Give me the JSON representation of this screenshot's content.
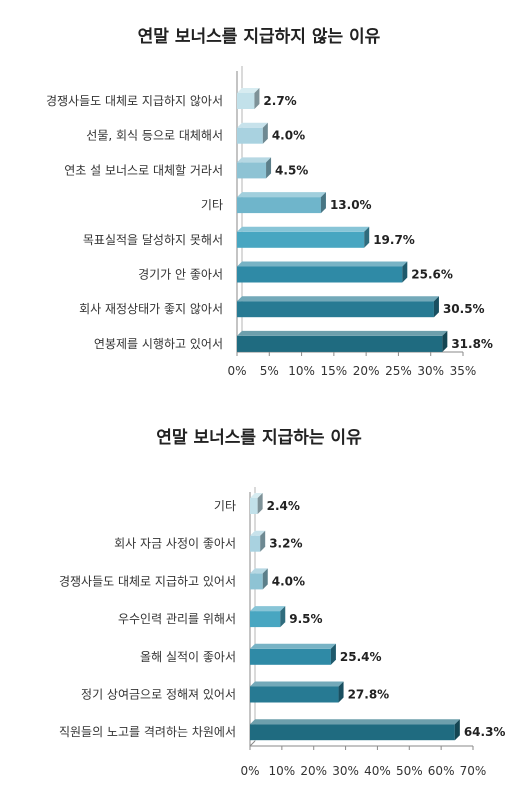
{
  "chart_data": [
    {
      "type": "bar",
      "orientation": "horizontal",
      "title": "연말 보너스를 지급하지 않는 이유",
      "categories": [
        "경쟁사들도 대체로 지급하지 않아서",
        "선물, 회식 등으로 대체해서",
        "연초 설 보너스로 대체할 거라서",
        "기타",
        "목표실적을 달성하지 못해서",
        "경기가 안 좋아서",
        "회사 재정상태가 좋지 않아서",
        "연봉제를 시행하고 있어서"
      ],
      "values": [
        2.7,
        4.0,
        4.5,
        13.0,
        19.7,
        25.6,
        30.5,
        31.8
      ],
      "value_labels": [
        "2.7%",
        "4.0%",
        "4.5%",
        "13.0%",
        "19.7%",
        "25.6%",
        "30.5%",
        "31.8%"
      ],
      "xlim": [
        0,
        35
      ],
      "xticks": [
        0,
        5,
        10,
        15,
        20,
        25,
        30,
        35
      ],
      "xtick_labels": [
        "0%",
        "5%",
        "10%",
        "15%",
        "20%",
        "25%",
        "30%",
        "35%"
      ],
      "grid": false,
      "bar_colors": [
        "#c2e1ea",
        "#a9d2e0",
        "#8ec3d4",
        "#6fb5cb",
        "#48a6c1",
        "#2f8aa6",
        "#277a93",
        "#1f6b80"
      ]
    },
    {
      "type": "bar",
      "orientation": "horizontal",
      "title": "연말 보너스를 지급하는 이유",
      "categories": [
        "기타",
        "회사 자금 사정이 좋아서",
        "경쟁사들도 대체로 지급하고 있어서",
        "우수인력 관리를 위해서",
        "올해 실적이 좋아서",
        "정기 상여금으로 정해져 있어서",
        "직원들의 노고를 격려하는 차원에서"
      ],
      "values": [
        2.4,
        3.2,
        4.0,
        9.5,
        25.4,
        27.8,
        64.3
      ],
      "value_labels": [
        "2.4%",
        "3.2%",
        "4.0%",
        "9.5%",
        "25.4%",
        "27.8%",
        "64.3%"
      ],
      "xlim": [
        0,
        70
      ],
      "xticks": [
        0,
        10,
        20,
        30,
        40,
        50,
        60,
        70
      ],
      "xtick_labels": [
        "0%",
        "10%",
        "20%",
        "30%",
        "40%",
        "50%",
        "60%",
        "70%"
      ],
      "grid": false,
      "bar_colors": [
        "#c2e1ea",
        "#a9d2e0",
        "#8ec3d4",
        "#48a6c1",
        "#2f8aa6",
        "#277a93",
        "#1f6b80"
      ]
    }
  ]
}
